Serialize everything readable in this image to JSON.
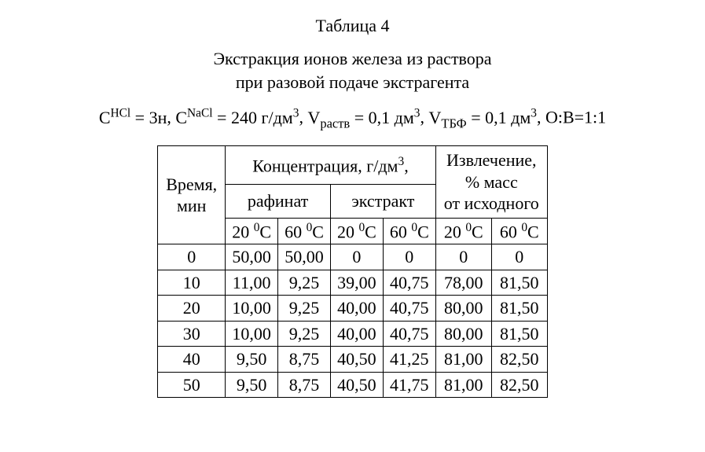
{
  "title": "Таблица 4",
  "subtitle_line1": "Экстракция ионов железа из раствора",
  "subtitle_line2": "при разовой подаче экстрагента",
  "params": {
    "c_hcl_label_base": "C",
    "c_hcl_label_sup": "HCl",
    "c_hcl_value": "3н",
    "c_nacl_label_base": "C",
    "c_nacl_label_sup": "NaCl",
    "c_nacl_value": "240 г/дм",
    "c_nacl_value_sup": "3",
    "v_rast_label_base": "V",
    "v_rast_label_sub": "раств",
    "v_rast_value": "0,1 дм",
    "v_rast_value_sup": "3",
    "v_tbf_label_base": "V",
    "v_tbf_label_sub": "ТБФ",
    "v_tbf_value": "0,1 дм",
    "v_tbf_value_sup": "3",
    "ov_label": "О:В=1:1"
  },
  "headers": {
    "time_l1": "Время,",
    "time_l2": "мин",
    "conc": "Концентрация, г/дм",
    "conc_sup": "3",
    "conc_comma": ",",
    "rafinat": "рафинат",
    "extract": "экстракт",
    "extr_l1": "Извлечение,",
    "extr_l2": "% масс",
    "extr_l3": "от исходного",
    "t20_a": "20 ",
    "t20_b": "C",
    "t60_a": "60 ",
    "t60_b": "C",
    "deg0": "0"
  },
  "rows": [
    {
      "t": "0",
      "r20": "50,00",
      "r60": "50,00",
      "e20": "0",
      "e60": "0",
      "x20": "0",
      "x60": "0"
    },
    {
      "t": "10",
      "r20": "11,00",
      "r60": "9,25",
      "e20": "39,00",
      "e60": "40,75",
      "x20": "78,00",
      "x60": "81,50"
    },
    {
      "t": "20",
      "r20": "10,00",
      "r60": "9,25",
      "e20": "40,00",
      "e60": "40,75",
      "x20": "80,00",
      "x60": "81,50"
    },
    {
      "t": "30",
      "r20": "10,00",
      "r60": "9,25",
      "e20": "40,00",
      "e60": "40,75",
      "x20": "80,00",
      "x60": "81,50"
    },
    {
      "t": "40",
      "r20": "9,50",
      "r60": "8,75",
      "e20": "40,50",
      "e60": "41,25",
      "x20": "81,00",
      "x60": "82,50"
    },
    {
      "t": "50",
      "r20": "9,50",
      "r60": "8,75",
      "e20": "40,50",
      "e60": "41,75",
      "x20": "81,00",
      "x60": "82,50"
    }
  ]
}
